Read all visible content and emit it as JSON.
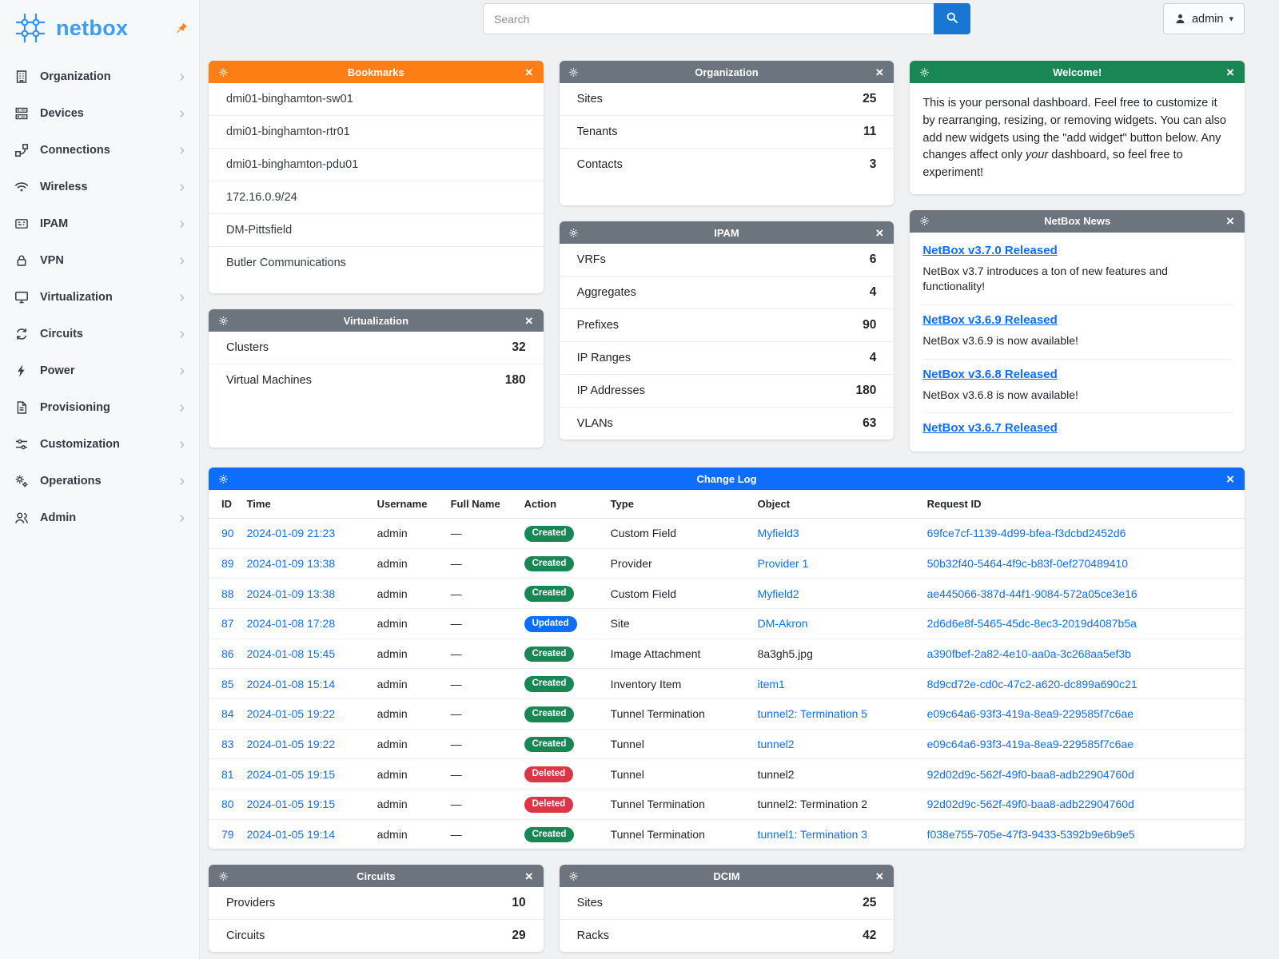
{
  "brand": {
    "name": "netbox",
    "logo_icon": "netbox-logo-icon",
    "pin_icon": "pin-icon"
  },
  "topbar": {
    "search_placeholder": "Search",
    "search_icon": "search-icon",
    "user_label": "admin",
    "user_icon": "person-icon",
    "caret_icon": "caret-down-icon"
  },
  "sidebar": {
    "items": [
      {
        "label": "Organization",
        "icon": "building-icon"
      },
      {
        "label": "Devices",
        "icon": "rack-icon"
      },
      {
        "label": "Connections",
        "icon": "cable-icon"
      },
      {
        "label": "Wireless",
        "icon": "wifi-icon"
      },
      {
        "label": "IPAM",
        "icon": "ip-card-icon"
      },
      {
        "label": "VPN",
        "icon": "lock-icon"
      },
      {
        "label": "Virtualization",
        "icon": "monitor-icon"
      },
      {
        "label": "Circuits",
        "icon": "loop-icon"
      },
      {
        "label": "Power",
        "icon": "bolt-icon"
      },
      {
        "label": "Provisioning",
        "icon": "document-icon"
      },
      {
        "label": "Customization",
        "icon": "sliders-icon"
      },
      {
        "label": "Operations",
        "icon": "gears-icon"
      },
      {
        "label": "Admin",
        "icon": "users-icon"
      }
    ]
  },
  "colors": {
    "brand_blue": "#3b9df5",
    "accent_orange": "#fd7e14",
    "widget_gray": "#6c757d",
    "widget_green": "#198754",
    "widget_blue": "#0d6efd",
    "link_blue": "#0d6efd",
    "search_button_blue": "#1976d2",
    "badge_created": "#198754",
    "badge_updated": "#0d6efd",
    "badge_deleted": "#dc3545"
  },
  "widgets": {
    "bookmarks": {
      "title": "Bookmarks",
      "header_color": "#fd7e14",
      "items": [
        "dmi01-binghamton-sw01",
        "dmi01-binghamton-rtr01",
        "dmi01-binghamton-pdu01",
        "172.16.0.9/24",
        "DM-Pittsfield",
        "Butler Communications"
      ]
    },
    "organization": {
      "title": "Organization",
      "header_color": "#6c757d",
      "stats": [
        {
          "label": "Sites",
          "value": "25"
        },
        {
          "label": "Tenants",
          "value": "11"
        },
        {
          "label": "Contacts",
          "value": "3"
        }
      ]
    },
    "welcome": {
      "title": "Welcome!",
      "header_color": "#198754",
      "text_before": "This is your personal dashboard. Feel free to customize it by rearranging, resizing, or removing widgets. You can also add new widgets using the \"add widget\" button below. Any changes affect only ",
      "text_italic": "your",
      "text_after": " dashboard, so feel free to experiment!"
    },
    "virtualization": {
      "title": "Virtualization",
      "header_color": "#6c757d",
      "stats": [
        {
          "label": "Clusters",
          "value": "32"
        },
        {
          "label": "Virtual Machines",
          "value": "180"
        }
      ]
    },
    "ipam": {
      "title": "IPAM",
      "header_color": "#6c757d",
      "stats": [
        {
          "label": "VRFs",
          "value": "6"
        },
        {
          "label": "Aggregates",
          "value": "4"
        },
        {
          "label": "Prefixes",
          "value": "90"
        },
        {
          "label": "IP Ranges",
          "value": "4"
        },
        {
          "label": "IP Addresses",
          "value": "180"
        },
        {
          "label": "VLANs",
          "value": "63"
        }
      ]
    },
    "news": {
      "title": "NetBox News",
      "header_color": "#6c757d",
      "items": [
        {
          "headline": "NetBox v3.7.0 Released",
          "summary": "NetBox v3.7 introduces a ton of new features and functionality!"
        },
        {
          "headline": "NetBox v3.6.9 Released",
          "summary": "NetBox v3.6.9 is now available!"
        },
        {
          "headline": "NetBox v3.6.8 Released",
          "summary": "NetBox v3.6.8 is now available!"
        },
        {
          "headline": "NetBox v3.6.7 Released",
          "summary": ""
        }
      ]
    },
    "changelog": {
      "title": "Change Log",
      "header_color": "#0d6efd",
      "columns": [
        "ID",
        "Time",
        "Username",
        "Full Name",
        "Action",
        "Type",
        "Object",
        "Request ID"
      ],
      "rows": [
        {
          "id": "90",
          "time": "2024-01-09 21:23",
          "username": "admin",
          "full_name": "—",
          "action": "Created",
          "type": "Custom Field",
          "object": "Myfield3",
          "object_link": true,
          "request_id": "69fce7cf-1139-4d99-bfea-f3dcbd2452d6"
        },
        {
          "id": "89",
          "time": "2024-01-09 13:38",
          "username": "admin",
          "full_name": "—",
          "action": "Created",
          "type": "Provider",
          "object": "Provider 1",
          "object_link": true,
          "request_id": "50b32f40-5464-4f9c-b83f-0ef270489410"
        },
        {
          "id": "88",
          "time": "2024-01-09 13:38",
          "username": "admin",
          "full_name": "—",
          "action": "Created",
          "type": "Custom Field",
          "object": "Myfield2",
          "object_link": true,
          "request_id": "ae445066-387d-44f1-9084-572a05ce3e16"
        },
        {
          "id": "87",
          "time": "2024-01-08 17:28",
          "username": "admin",
          "full_name": "—",
          "action": "Updated",
          "type": "Site",
          "object": "DM-Akron",
          "object_link": true,
          "request_id": "2d6d6e8f-5465-45dc-8ec3-2019d4087b5a"
        },
        {
          "id": "86",
          "time": "2024-01-08 15:45",
          "username": "admin",
          "full_name": "—",
          "action": "Created",
          "type": "Image Attachment",
          "object": "8a3gh5.jpg",
          "object_link": false,
          "request_id": "a390fbef-2a82-4e10-aa0a-3c268aa5ef3b"
        },
        {
          "id": "85",
          "time": "2024-01-08 15:14",
          "username": "admin",
          "full_name": "—",
          "action": "Created",
          "type": "Inventory Item",
          "object": "item1",
          "object_link": true,
          "request_id": "8d9cd72e-cd0c-47c2-a620-dc899a690c21"
        },
        {
          "id": "84",
          "time": "2024-01-05 19:22",
          "username": "admin",
          "full_name": "—",
          "action": "Created",
          "type": "Tunnel Termination",
          "object": "tunnel2: Termination 5",
          "object_link": true,
          "request_id": "e09c64a6-93f3-419a-8ea9-229585f7c6ae"
        },
        {
          "id": "83",
          "time": "2024-01-05 19:22",
          "username": "admin",
          "full_name": "—",
          "action": "Created",
          "type": "Tunnel",
          "object": "tunnel2",
          "object_link": true,
          "request_id": "e09c64a6-93f3-419a-8ea9-229585f7c6ae"
        },
        {
          "id": "81",
          "time": "2024-01-05 19:15",
          "username": "admin",
          "full_name": "—",
          "action": "Deleted",
          "type": "Tunnel",
          "object": "tunnel2",
          "object_link": false,
          "request_id": "92d02d9c-562f-49f0-baa8-adb22904760d"
        },
        {
          "id": "80",
          "time": "2024-01-05 19:15",
          "username": "admin",
          "full_name": "—",
          "action": "Deleted",
          "type": "Tunnel Termination",
          "object": "tunnel2: Termination 2",
          "object_link": false,
          "request_id": "92d02d9c-562f-49f0-baa8-adb22904760d"
        },
        {
          "id": "79",
          "time": "2024-01-05 19:14",
          "username": "admin",
          "full_name": "—",
          "action": "Created",
          "type": "Tunnel Termination",
          "object": "tunnel1: Termination 3",
          "object_link": true,
          "request_id": "f038e755-705e-47f3-9433-5392b9e6b9e5"
        }
      ]
    },
    "circuits": {
      "title": "Circuits",
      "header_color": "#6c757d",
      "stats": [
        {
          "label": "Providers",
          "value": "10"
        },
        {
          "label": "Circuits",
          "value": "29"
        }
      ]
    },
    "dcim": {
      "title": "DCIM",
      "header_color": "#6c757d",
      "stats": [
        {
          "label": "Sites",
          "value": "25"
        },
        {
          "label": "Racks",
          "value": "42"
        }
      ]
    }
  }
}
